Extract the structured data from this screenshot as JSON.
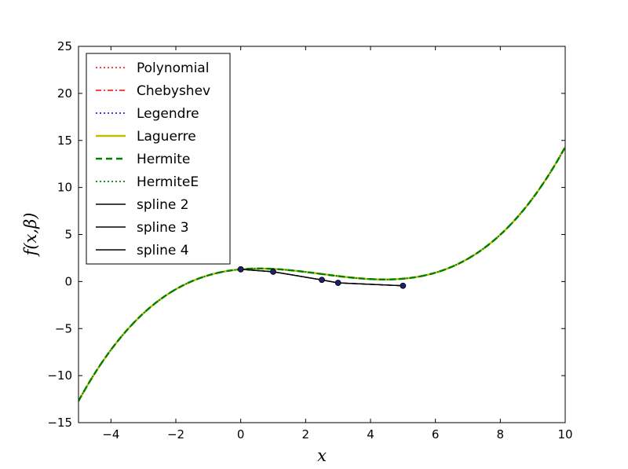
{
  "chart_data": {
    "type": "line",
    "xlabel": "x",
    "ylabel": "f(x,β)",
    "xlim": [
      -5,
      10
    ],
    "ylim": [
      -15,
      25
    ],
    "xticks": [
      -4,
      -2,
      0,
      2,
      4,
      6,
      8,
      10
    ],
    "yticks": [
      -15,
      -10,
      -5,
      0,
      5,
      10,
      15,
      20,
      25
    ],
    "xtick_labels": [
      "−4",
      "−2",
      "0",
      "2",
      "4",
      "6",
      "8",
      "10"
    ],
    "ytick_labels": [
      "−15",
      "−10",
      "−5",
      "0",
      "5",
      "10",
      "15",
      "20",
      "25"
    ],
    "grid": false,
    "legend_position": "top-left",
    "curve_coefficients": [
      1.3,
      0.3,
      -0.3,
      0.04
    ],
    "curve_range": [
      -5,
      10
    ],
    "sample_points": {
      "x": [
        0,
        1,
        2.5,
        3,
        5
      ],
      "y": [
        1.3,
        1.04,
        0.175,
        -0.14,
        -0.45
      ],
      "color": "#1f1f6e"
    },
    "series": [
      {
        "name": "Polynomial",
        "color": "#ff0000",
        "style": "dotted",
        "kind": "curve"
      },
      {
        "name": "Chebyshev",
        "color": "#ff0000",
        "style": "dashdot",
        "kind": "curve"
      },
      {
        "name": "Legendre",
        "color": "#0000cc",
        "style": "dotted",
        "kind": "curve"
      },
      {
        "name": "Laguerre",
        "color": "#bfbf00",
        "style": "solid",
        "kind": "curve"
      },
      {
        "name": "Hermite",
        "color": "#008000",
        "style": "dashed",
        "kind": "curve"
      },
      {
        "name": "HermiteE",
        "color": "#008000",
        "style": "dotted",
        "kind": "curve"
      },
      {
        "name": "spline 2",
        "color": "#000000",
        "style": "solid",
        "kind": "spline"
      },
      {
        "name": "spline 3",
        "color": "#000000",
        "style": "solid",
        "kind": "spline"
      },
      {
        "name": "spline 4",
        "color": "#000000",
        "style": "solid",
        "kind": "spline"
      }
    ]
  }
}
